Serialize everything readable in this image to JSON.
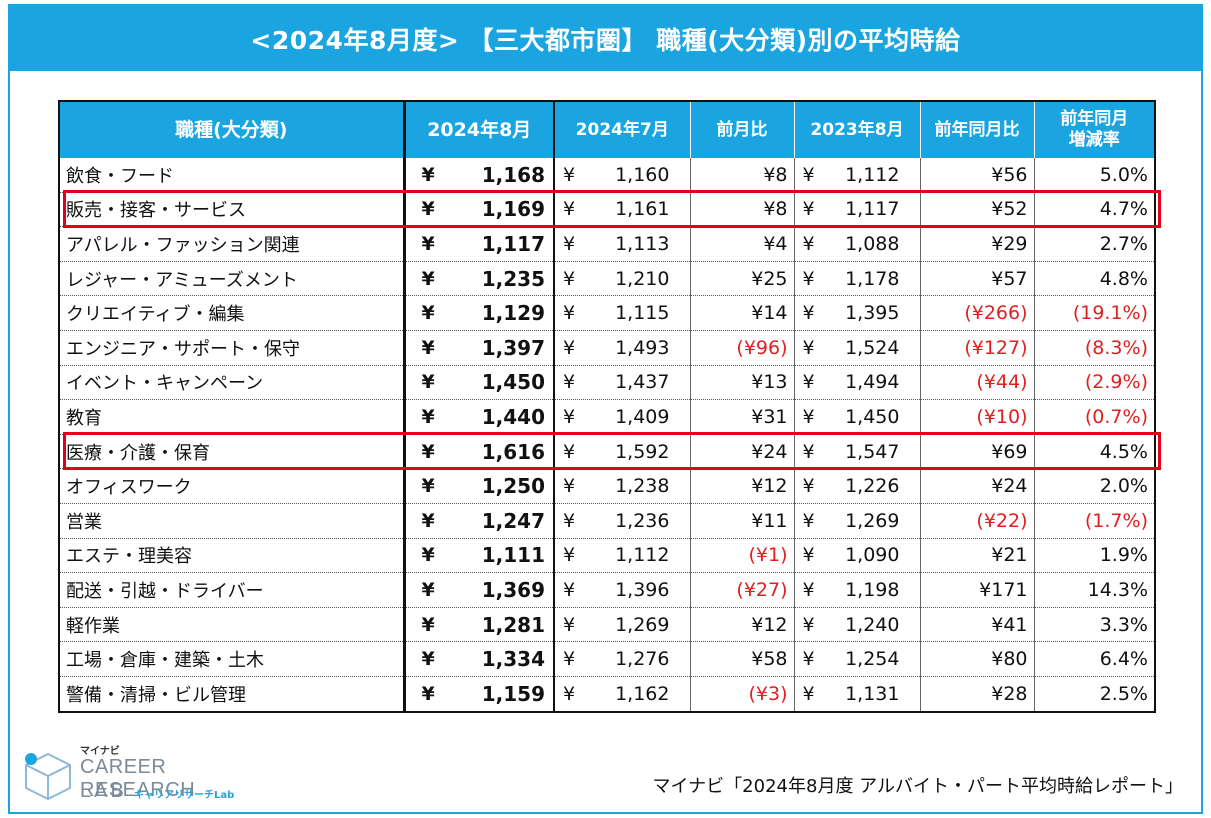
{
  "title": "<2024年8月度> 【三大都市圏】 職種(大分類)別の平均時給",
  "headers": {
    "category": "職種(大分類)",
    "aug2024": "2024年8月",
    "jul2024": "2024年7月",
    "mom": "前月比",
    "aug2023": "2023年8月",
    "yoy": "前年同月比",
    "yoy_rate_line1": "前年同月",
    "yoy_rate_line2": "増減率"
  },
  "yen_symbol": "¥",
  "rows": [
    {
      "name": "飲食・フード",
      "aug2024": "1,168",
      "jul2024": "1,160",
      "mom": "¥8",
      "aug2023": "1,112",
      "yoy": "¥56",
      "rate": "5.0%",
      "mom_neg": false,
      "yoy_neg": false,
      "rate_neg": false
    },
    {
      "name": "販売・接客・サービス",
      "aug2024": "1,169",
      "jul2024": "1,161",
      "mom": "¥8",
      "aug2023": "1,117",
      "yoy": "¥52",
      "rate": "4.7%",
      "mom_neg": false,
      "yoy_neg": false,
      "rate_neg": false
    },
    {
      "name": "アパレル・ファッション関連",
      "aug2024": "1,117",
      "jul2024": "1,113",
      "mom": "¥4",
      "aug2023": "1,088",
      "yoy": "¥29",
      "rate": "2.7%",
      "mom_neg": false,
      "yoy_neg": false,
      "rate_neg": false
    },
    {
      "name": "レジャー・アミューズメント",
      "aug2024": "1,235",
      "jul2024": "1,210",
      "mom": "¥25",
      "aug2023": "1,178",
      "yoy": "¥57",
      "rate": "4.8%",
      "mom_neg": false,
      "yoy_neg": false,
      "rate_neg": false
    },
    {
      "name": "クリエイティブ・編集",
      "aug2024": "1,129",
      "jul2024": "1,115",
      "mom": "¥14",
      "aug2023": "1,395",
      "yoy": "(¥266)",
      "rate": "(19.1%)",
      "mom_neg": false,
      "yoy_neg": true,
      "rate_neg": true
    },
    {
      "name": "エンジニア・サポート・保守",
      "aug2024": "1,397",
      "jul2024": "1,493",
      "mom": "(¥96)",
      "aug2023": "1,524",
      "yoy": "(¥127)",
      "rate": "(8.3%)",
      "mom_neg": true,
      "yoy_neg": true,
      "rate_neg": true
    },
    {
      "name": "イベント・キャンペーン",
      "aug2024": "1,450",
      "jul2024": "1,437",
      "mom": "¥13",
      "aug2023": "1,494",
      "yoy": "(¥44)",
      "rate": "(2.9%)",
      "mom_neg": false,
      "yoy_neg": true,
      "rate_neg": true
    },
    {
      "name": "教育",
      "aug2024": "1,440",
      "jul2024": "1,409",
      "mom": "¥31",
      "aug2023": "1,450",
      "yoy": "(¥10)",
      "rate": "(0.7%)",
      "mom_neg": false,
      "yoy_neg": true,
      "rate_neg": true
    },
    {
      "name": "医療・介護・保育",
      "aug2024": "1,616",
      "jul2024": "1,592",
      "mom": "¥24",
      "aug2023": "1,547",
      "yoy": "¥69",
      "rate": "4.5%",
      "mom_neg": false,
      "yoy_neg": false,
      "rate_neg": false
    },
    {
      "name": "オフィスワーク",
      "aug2024": "1,250",
      "jul2024": "1,238",
      "mom": "¥12",
      "aug2023": "1,226",
      "yoy": "¥24",
      "rate": "2.0%",
      "mom_neg": false,
      "yoy_neg": false,
      "rate_neg": false
    },
    {
      "name": "営業",
      "aug2024": "1,247",
      "jul2024": "1,236",
      "mom": "¥11",
      "aug2023": "1,269",
      "yoy": "(¥22)",
      "rate": "(1.7%)",
      "mom_neg": false,
      "yoy_neg": true,
      "rate_neg": true
    },
    {
      "name": "エステ・理美容",
      "aug2024": "1,111",
      "jul2024": "1,112",
      "mom": "(¥1)",
      "aug2023": "1,090",
      "yoy": "¥21",
      "rate": "1.9%",
      "mom_neg": true,
      "yoy_neg": false,
      "rate_neg": false
    },
    {
      "name": "配送・引越・ドライバー",
      "aug2024": "1,369",
      "jul2024": "1,396",
      "mom": "(¥27)",
      "aug2023": "1,198",
      "yoy": "¥171",
      "rate": "14.3%",
      "mom_neg": true,
      "yoy_neg": false,
      "rate_neg": false
    },
    {
      "name": "軽作業",
      "aug2024": "1,281",
      "jul2024": "1,269",
      "mom": "¥12",
      "aug2023": "1,240",
      "yoy": "¥41",
      "rate": "3.3%",
      "mom_neg": false,
      "yoy_neg": false,
      "rate_neg": false
    },
    {
      "name": "工場・倉庫・建築・土木",
      "aug2024": "1,334",
      "jul2024": "1,276",
      "mom": "¥58",
      "aug2023": "1,254",
      "yoy": "¥80",
      "rate": "6.4%",
      "mom_neg": false,
      "yoy_neg": false,
      "rate_neg": false
    },
    {
      "name": "警備・清掃・ビル管理",
      "aug2024": "1,159",
      "jul2024": "1,162",
      "mom": "(¥3)",
      "aug2023": "1,131",
      "yoy": "¥28",
      "rate": "2.5%",
      "mom_neg": true,
      "yoy_neg": false,
      "rate_neg": false
    }
  ],
  "highlighted_rows": [
    1,
    8
  ],
  "logo": {
    "small": "マイナビ",
    "line1": "CAREER RESEARCH",
    "line2": "LAB",
    "kana": "キャリアリサーチLab"
  },
  "source": "マイナビ「2024年8月度 アルバイト・パート平均時給レポート」",
  "colors": {
    "accent": "#1aa5e0",
    "negative": "#e02020",
    "highlight": "#e3001b"
  }
}
